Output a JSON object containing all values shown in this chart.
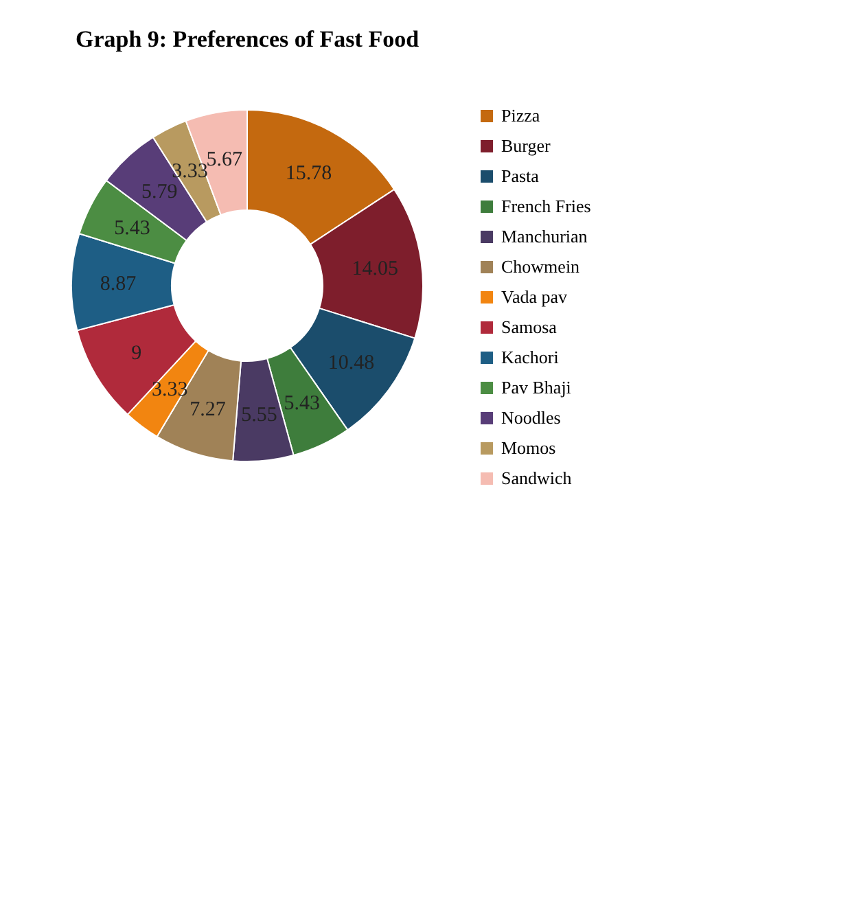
{
  "chart_data": {
    "type": "donut",
    "title": "Graph 9: Preferences of Fast Food",
    "categories": [
      "Pizza",
      "Burger",
      "Pasta",
      "French Fries",
      "Manchurian",
      "Chowmein",
      "Vada pav",
      "Samosa",
      "Kachori",
      "Pav Bhaji",
      "Noodles",
      "Momos",
      "Sandwich"
    ],
    "values": [
      15.78,
      14.05,
      10.48,
      5.43,
      5.55,
      7.27,
      3.33,
      9,
      8.87,
      5.43,
      5.79,
      3.33,
      5.67
    ],
    "colors": [
      "#c4690f",
      "#7e1e2c",
      "#1b4d6c",
      "#3e7d3c",
      "#4a3a63",
      "#a08257",
      "#f28510",
      "#b02a3b",
      "#1e5e85",
      "#4c8d43",
      "#583d78",
      "#b89a60",
      "#f5bcb2"
    ],
    "data_labels": true,
    "legend": "right"
  }
}
